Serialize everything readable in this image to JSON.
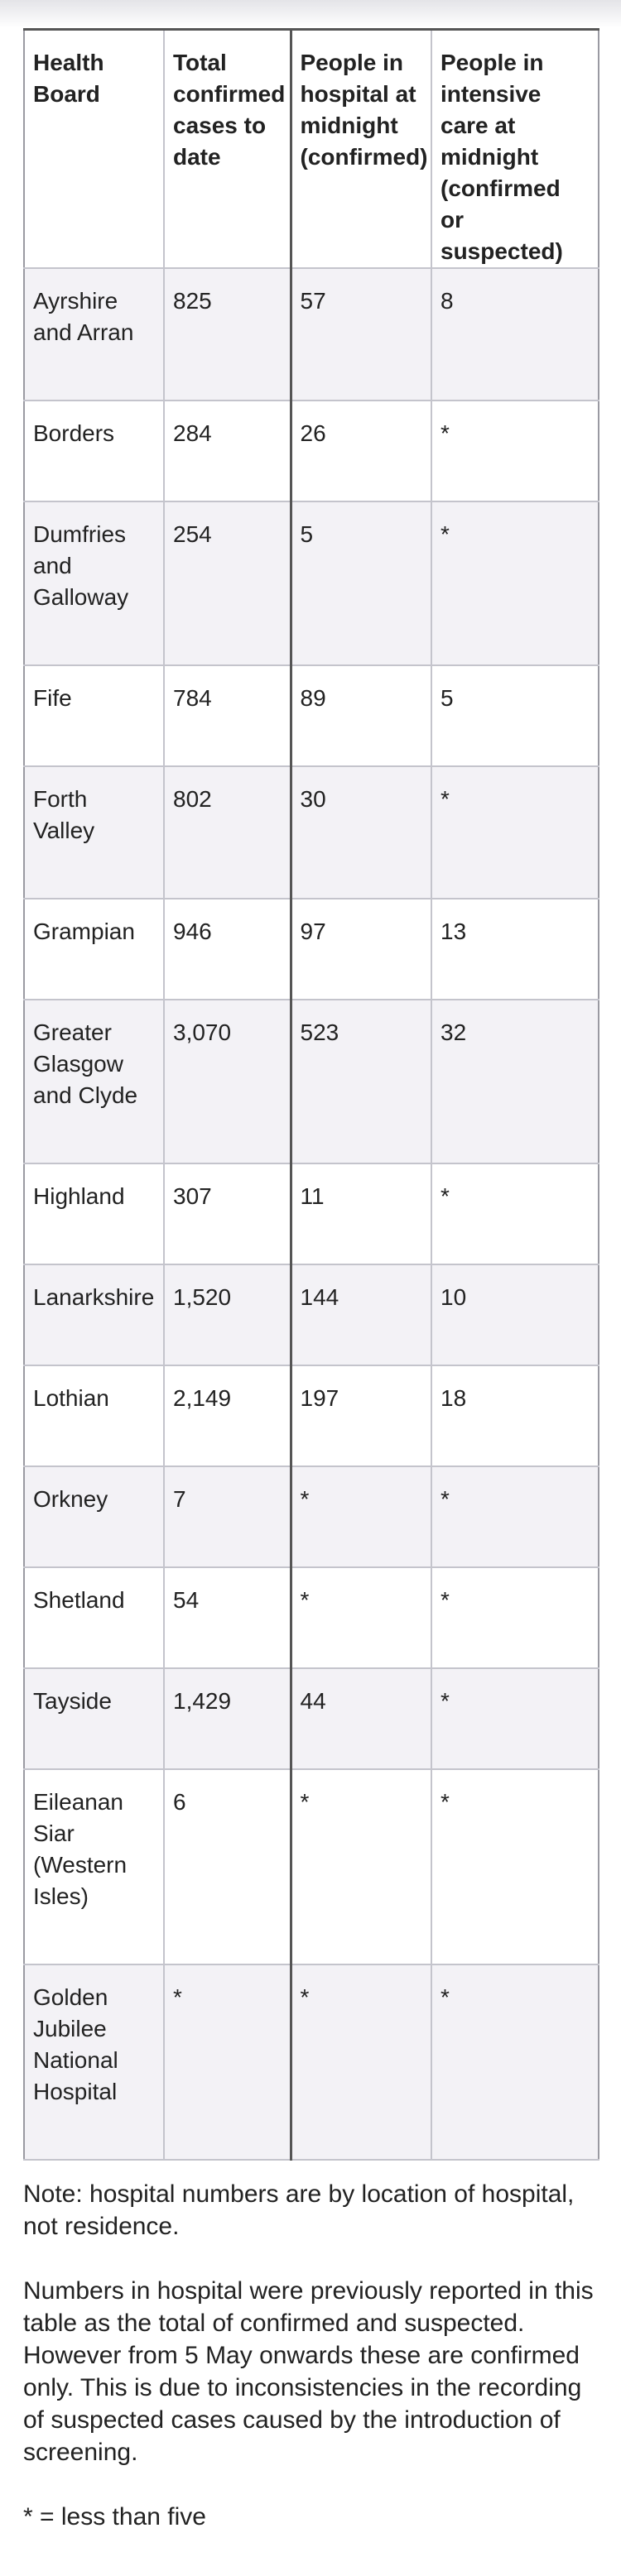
{
  "table": {
    "headers": [
      "Health Board",
      "Total confirmed cases to date",
      "People in hospital at midnight (confirmed)",
      "People in intensive care at midnight (confirmed or suspected)"
    ],
    "rows": [
      [
        "Ayrshire and Arran",
        "825",
        "57",
        "8"
      ],
      [
        "Borders",
        "284",
        "26",
        "*"
      ],
      [
        "Dumfries and Galloway",
        "254",
        "5",
        "*"
      ],
      [
        "Fife",
        "784",
        "89",
        "5"
      ],
      [
        "Forth Valley",
        "802",
        "30",
        "*"
      ],
      [
        "Grampian",
        "946",
        "97",
        "13"
      ],
      [
        "Greater Glasgow and Clyde",
        "3,070",
        "523",
        "32"
      ],
      [
        "Highland",
        "307",
        "11",
        "*"
      ],
      [
        "Lanarkshire",
        "1,520",
        "144",
        "10"
      ],
      [
        "Lothian",
        "2,149",
        "197",
        "18"
      ],
      [
        "Orkney",
        "7",
        "*",
        "*"
      ],
      [
        "Shetland",
        "54",
        "*",
        "*"
      ],
      [
        "Tayside",
        "1,429",
        "44",
        "*"
      ],
      [
        "Eileanan Siar (Western Isles)",
        "6",
        "*",
        "*"
      ],
      [
        "Golden Jubilee National Hospital",
        "*",
        "*",
        "*"
      ]
    ]
  },
  "notes": {
    "location": "Note: hospital numbers are by location of hospital, not residence.",
    "reporting": "Numbers in hospital were previously reported in this table as the total of confirmed and suspected. However from 5 May onwards these are confirmed only. This is due to inconsistencies in the recording of suspected cases caused by the introduction of screening.",
    "legend": "* = less than five"
  }
}
